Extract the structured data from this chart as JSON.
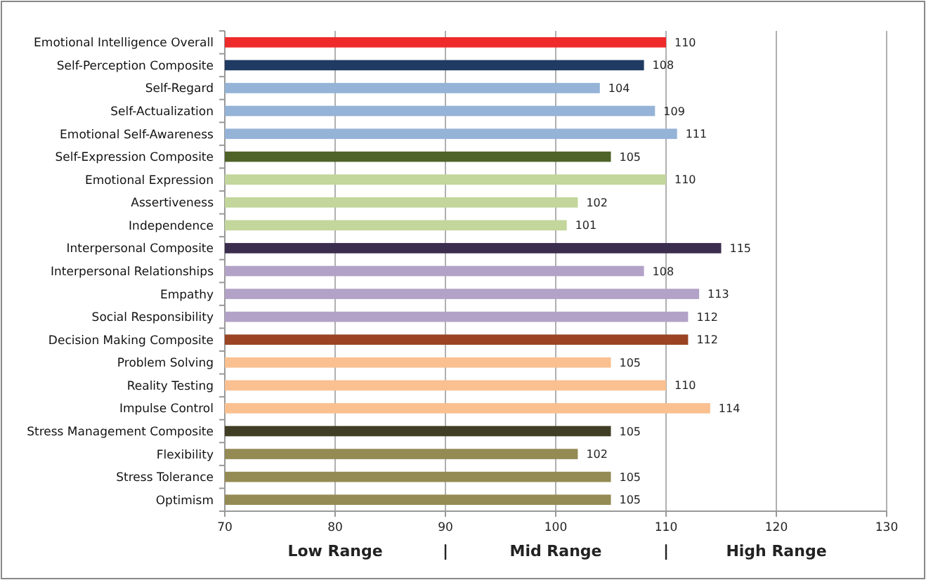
{
  "chart_data": {
    "type": "bar",
    "orientation": "horizontal",
    "categories": [
      "Emotional Intelligence Overall",
      "Self-Perception Composite",
      "Self-Regard",
      "Self-Actualization",
      "Emotional Self-Awareness",
      "Self-Expression Composite",
      "Emotional Expression",
      "Assertiveness",
      "Independence",
      "Interpersonal Composite",
      "Interpersonal Relationships",
      "Empathy",
      "Social Responsibility",
      "Decision Making Composite",
      "Problem Solving",
      "Reality Testing",
      "Impulse Control",
      "Stress Management Composite",
      "Flexibility",
      "Stress Tolerance",
      "Optimism"
    ],
    "values": [
      110,
      108,
      104,
      109,
      111,
      105,
      110,
      102,
      101,
      115,
      108,
      113,
      112,
      112,
      105,
      110,
      114,
      105,
      102,
      105,
      105
    ],
    "colors": [
      "#ee2a2a",
      "#1f3b63",
      "#95b3d7",
      "#95b3d7",
      "#95b3d7",
      "#4f6228",
      "#c3d69b",
      "#c3d69b",
      "#c3d69b",
      "#3b2d4d",
      "#b3a2c7",
      "#b3a2c7",
      "#b3a2c7",
      "#9a4424",
      "#fac090",
      "#fac090",
      "#fac090",
      "#413e26",
      "#948a54",
      "#948a54",
      "#948a54"
    ],
    "value_labels": [
      "110",
      "108",
      "104",
      "109",
      "111",
      "105",
      "110",
      "102",
      "101",
      "115",
      "108",
      "113",
      "112",
      "112",
      "105",
      "110",
      "114",
      "105",
      "102",
      "105",
      "105"
    ],
    "xlim": [
      70,
      130
    ],
    "xticks": [
      70,
      80,
      90,
      100,
      110,
      120,
      130
    ],
    "grid": "x",
    "annotations": [
      "Low Range",
      "|",
      "Mid Range",
      "|",
      "High Range"
    ]
  }
}
